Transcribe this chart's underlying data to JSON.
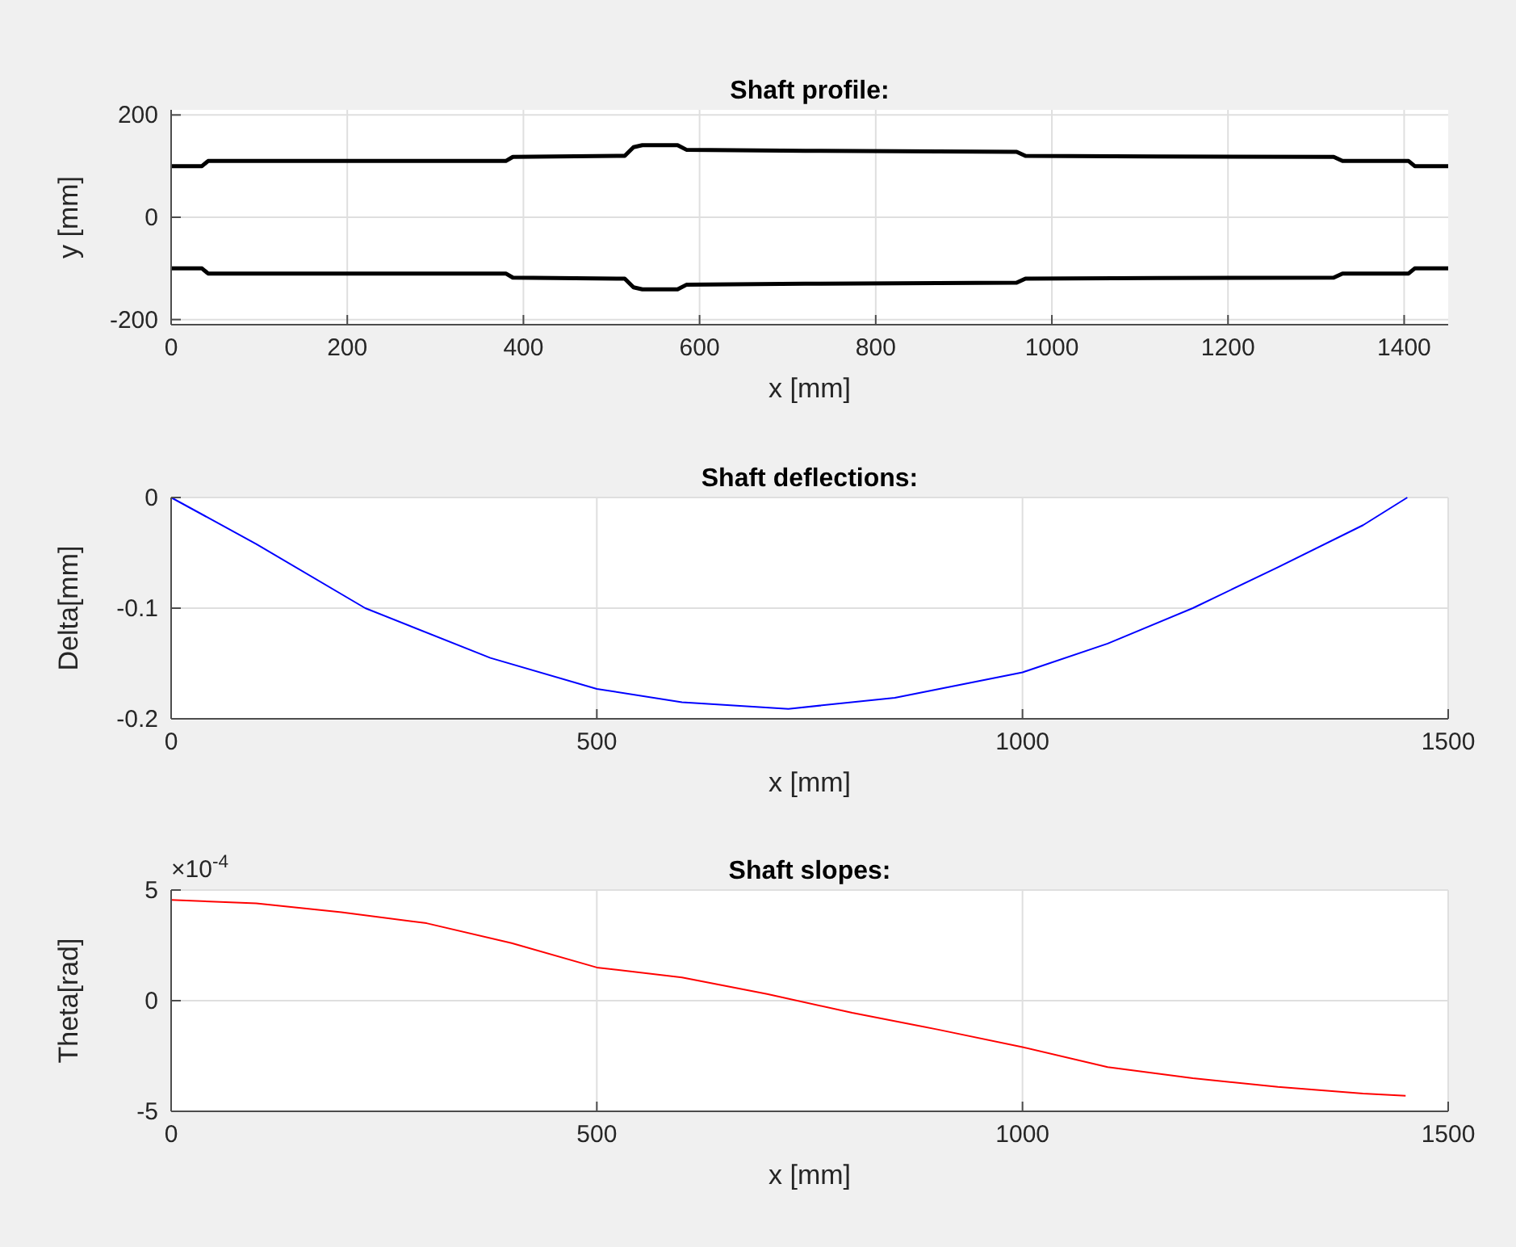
{
  "chart_data": [
    {
      "type": "line",
      "title": "Shaft profile:",
      "xlabel": "x [mm]",
      "ylabel": "y [mm]",
      "xlim": [
        0,
        1450
      ],
      "ylim": [
        -210,
        210
      ],
      "xticks": [
        0,
        200,
        400,
        600,
        800,
        1000,
        1200,
        1400
      ],
      "yticks": [
        -200,
        0,
        200
      ],
      "grid": true,
      "series": [
        {
          "color": "#000000",
          "x": [
            0,
            35,
            42,
            380,
            388,
            515,
            525,
            535,
            575,
            585,
            720,
            960,
            970,
            1120,
            1320,
            1330,
            1405,
            1412,
            1450
          ],
          "values": [
            100,
            100,
            110,
            110,
            118,
            120,
            137,
            141,
            141,
            132,
            130,
            128,
            120,
            119,
            118,
            110,
            110,
            100,
            100
          ]
        },
        {
          "color": "#000000",
          "x": [
            0,
            35,
            42,
            380,
            388,
            515,
            525,
            535,
            575,
            585,
            720,
            960,
            970,
            1120,
            1320,
            1330,
            1405,
            1412,
            1450
          ],
          "values": [
            -100,
            -100,
            -110,
            -110,
            -118,
            -120,
            -137,
            -141,
            -141,
            -132,
            -130,
            -128,
            -120,
            -119,
            -118,
            -110,
            -110,
            -100,
            -100
          ]
        }
      ]
    },
    {
      "type": "line",
      "title": "Shaft deflections:",
      "xlabel": "x [mm]",
      "ylabel": "Delta[mm]",
      "xlim": [
        0,
        1500
      ],
      "ylim": [
        -0.2,
        0
      ],
      "xticks": [
        0,
        500,
        1000,
        1500
      ],
      "yticks": [
        -0.2,
        -0.1,
        0
      ],
      "grid": true,
      "series": [
        {
          "color": "#0000ff",
          "x": [
            0,
            100,
            228,
            375,
            500,
            600,
            725,
            850,
            1000,
            1100,
            1200,
            1300,
            1400,
            1452
          ],
          "values": [
            0,
            -0.042,
            -0.1,
            -0.145,
            -0.173,
            -0.185,
            -0.191,
            -0.181,
            -0.158,
            -0.132,
            -0.1,
            -0.063,
            -0.025,
            0
          ]
        }
      ]
    },
    {
      "type": "line",
      "title": "Shaft slopes:",
      "xlabel": "x [mm]",
      "ylabel": "Theta[rad]",
      "xlim": [
        0,
        1500
      ],
      "ylim": [
        -5,
        5
      ],
      "xticks": [
        0,
        500,
        1000,
        1500
      ],
      "yticks": [
        -5,
        0,
        5
      ],
      "grid": true,
      "annotations": [
        "×10$^{-4}$"
      ],
      "series": [
        {
          "color": "#ff0000",
          "x": [
            0,
            100,
            200,
            300,
            400,
            500,
            600,
            700,
            800,
            900,
            1000,
            1100,
            1200,
            1300,
            1400,
            1450
          ],
          "values": [
            4.55,
            4.4,
            4.0,
            3.5,
            2.6,
            1.5,
            1.05,
            0.3,
            -0.55,
            -1.3,
            -2.1,
            -3.0,
            -3.5,
            -3.9,
            -4.2,
            -4.3
          ]
        }
      ]
    }
  ]
}
